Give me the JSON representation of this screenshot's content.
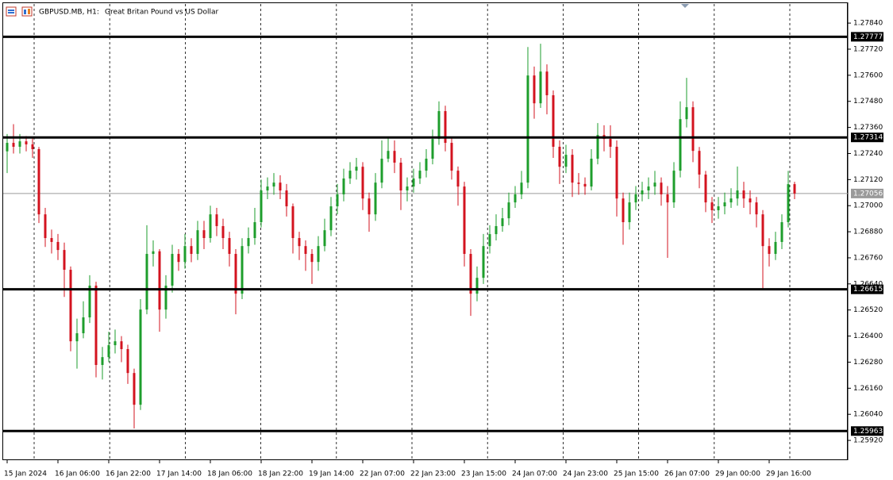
{
  "chart_data": {
    "type": "candlestick",
    "symbol": "GBPUSD.MB, H1:",
    "title": "Great Britan Pound vs US Dollar",
    "colors": {
      "up": "#1e9e2c",
      "down": "#d3131f",
      "level": "#000000",
      "current": "#9a9a9a"
    },
    "grid": true,
    "ylim": [
      1.25829,
      1.27928
    ],
    "yticks": [
      {
        "value": 1.2784,
        "label": "1.27840"
      },
      {
        "value": 1.2772,
        "label": "1.27720"
      },
      {
        "value": 1.276,
        "label": "1.27600"
      },
      {
        "value": 1.2748,
        "label": "1.27480"
      },
      {
        "value": 1.2736,
        "label": "1.27360"
      },
      {
        "value": 1.2724,
        "label": "1.27240"
      },
      {
        "value": 1.2712,
        "label": "1.27120"
      },
      {
        "value": 1.27,
        "label": "1.27000"
      },
      {
        "value": 1.2688,
        "label": "1.26880"
      },
      {
        "value": 1.2676,
        "label": "1.26760"
      },
      {
        "value": 1.2664,
        "label": "1.26640"
      },
      {
        "value": 1.2652,
        "label": "1.26520"
      },
      {
        "value": 1.264,
        "label": "1.26400"
      },
      {
        "value": 1.2628,
        "label": "1.26280"
      },
      {
        "value": 1.2616,
        "label": "1.26160"
      },
      {
        "value": 1.2604,
        "label": "1.26040"
      },
      {
        "value": 1.2592,
        "label": "1.25920"
      }
    ],
    "levels": [
      {
        "value": 1.27777,
        "label": "1.27777"
      },
      {
        "value": 1.27314,
        "label": "1.27314"
      },
      {
        "value": 1.26615,
        "label": "1.26615"
      },
      {
        "value": 1.25963,
        "label": "1.25963"
      }
    ],
    "current_price": {
      "value": 1.27056,
      "label": "1.27056"
    },
    "categories": [
      "15 Jan 2024",
      null,
      null,
      null,
      null,
      null,
      null,
      null,
      "16 Jan 06:00",
      null,
      null,
      null,
      null,
      null,
      null,
      null,
      "16 Jan 22:00",
      null,
      null,
      null,
      null,
      null,
      null,
      null,
      "17 Jan 14:00",
      null,
      null,
      null,
      null,
      null,
      null,
      null,
      "18 Jan 06:00",
      null,
      null,
      null,
      null,
      null,
      null,
      null,
      "18 Jan 22:00",
      null,
      null,
      null,
      null,
      null,
      null,
      null,
      "19 Jan 14:00",
      null,
      null,
      null,
      null,
      null,
      null,
      null,
      "22 Jan 07:00",
      null,
      null,
      null,
      null,
      null,
      null,
      null,
      "22 Jan 23:00",
      null,
      null,
      null,
      null,
      null,
      null,
      null,
      "23 Jan 15:00",
      null,
      null,
      null,
      null,
      null,
      null,
      null,
      "24 Jan 07:00",
      null,
      null,
      null,
      null,
      null,
      null,
      null,
      "24 Jan 23:00",
      null,
      null,
      null,
      null,
      null,
      null,
      null,
      "25 Jan 15:00",
      null,
      null,
      null,
      null,
      null,
      null,
      null,
      "26 Jan 07:00",
      null,
      null,
      null,
      null,
      null,
      null,
      null,
      "29 Jan 00:00",
      null,
      null,
      null,
      null,
      null,
      null,
      null,
      "29 Jan 16:00",
      null,
      null,
      null,
      null
    ],
    "open": [
      1.2725,
      1.27289,
      1.27271,
      1.27296,
      1.27282,
      1.2726,
      1.2696,
      1.26851,
      1.26833,
      1.26796,
      1.26705,
      1.26376,
      1.26413,
      1.26486,
      1.26632,
      1.26267,
      1.26303,
      1.26358,
      1.26376,
      1.2634,
      1.2623,
      1.26084,
      1.26522,
      1.26778,
      1.2679,
      1.26522,
      1.26632,
      1.26778,
      1.26741,
      1.26814,
      1.26778,
      1.26887,
      1.26851,
      1.2696,
      1.26906,
      1.26851,
      1.26778,
      1.26595,
      1.26814,
      1.26851,
      1.26924,
      1.2707,
      1.27088,
      1.27106,
      1.2707,
      1.26997,
      1.26851,
      1.26814,
      1.26778,
      1.26741,
      1.26814,
      1.26887,
      1.26997,
      1.27052,
      1.27125,
      1.27161,
      1.27179,
      1.27033,
      1.2696,
      1.27106,
      1.27216,
      1.27252,
      1.27198,
      1.2707,
      1.27088,
      1.27125,
      1.27161,
      1.27216,
      1.27307,
      1.27435,
      1.27289,
      1.27161,
      1.27088,
      1.26778,
      1.26595,
      1.26668,
      1.26814,
      1.26869,
      1.26906,
      1.26942,
      1.27015,
      1.27052,
      1.27106,
      1.27599,
      1.27471,
      1.27617,
      1.27508,
      1.27271,
      1.27179,
      1.27234,
      1.27106,
      1.271,
      1.27088,
      1.27216,
      1.27325,
      1.27307,
      1.27271,
      1.27033,
      1.26924,
      1.27015,
      1.27052,
      1.2707,
      1.27088,
      1.27106,
      1.27052,
      1.27015,
      1.27161,
      1.27398,
      1.27453,
      1.27252,
      1.27143,
      1.27015,
      1.26979,
      1.26997,
      1.27015,
      1.27033,
      1.2707,
      1.27033,
      1.27015,
      1.2696,
      1.26814,
      1.26778,
      1.26833,
      1.26924,
      1.27099
    ],
    "high": [
      1.2733,
      1.27375,
      1.2733,
      1.2732,
      1.2731,
      1.2727,
      1.2699,
      1.2689,
      1.2687,
      1.2683,
      1.2672,
      1.2648,
      1.2656,
      1.2668,
      1.2665,
      1.2635,
      1.2642,
      1.2643,
      1.264,
      1.2636,
      1.2625,
      1.2657,
      1.2691,
      1.2684,
      1.268,
      1.2668,
      1.2682,
      1.268,
      1.2687,
      1.2685,
      1.2693,
      1.2693,
      1.27,
      1.2699,
      1.2694,
      1.2688,
      1.268,
      1.2685,
      1.269,
      1.2699,
      1.2712,
      1.2713,
      1.2715,
      1.2714,
      1.271,
      1.2701,
      1.2688,
      1.2684,
      1.268,
      1.2686,
      1.2694,
      1.2704,
      1.271,
      1.2717,
      1.272,
      1.2722,
      1.272,
      1.2706,
      1.2715,
      1.273,
      1.2731,
      1.273,
      1.2722,
      1.2713,
      1.2717,
      1.272,
      1.2726,
      1.2735,
      1.2748,
      1.2746,
      1.2731,
      1.2718,
      1.2711,
      1.268,
      1.2672,
      1.2687,
      1.2691,
      1.2696,
      1.2699,
      1.2706,
      1.2709,
      1.2716,
      1.2773,
      1.2764,
      1.27745,
      1.2765,
      1.2753,
      1.273,
      1.2728,
      1.2726,
      1.2715,
      1.2713,
      1.2726,
      1.2738,
      1.2737,
      1.2737,
      1.273,
      1.2706,
      1.2706,
      1.2709,
      1.2711,
      1.2713,
      1.2716,
      1.2713,
      1.2709,
      1.272,
      1.2748,
      1.27588,
      1.2748,
      1.2727,
      1.2716,
      1.2704,
      1.2704,
      1.2706,
      1.2708,
      1.2718,
      1.2711,
      1.2707,
      1.2704,
      1.2698,
      1.2685,
      1.2688,
      1.2696,
      1.2716,
      1.2711
    ],
    "low": [
      1.2715,
      1.2724,
      1.2724,
      1.2725,
      1.2722,
      1.2692,
      1.2681,
      1.2678,
      1.2675,
      1.2658,
      1.2633,
      1.2625,
      1.2639,
      1.2646,
      1.2621,
      1.262,
      1.2628,
      1.2632,
      1.2628,
      1.2618,
      1.25975,
      1.2606,
      1.265,
      1.2672,
      1.2642,
      1.2648,
      1.266,
      1.267,
      1.2671,
      1.2674,
      1.2675,
      1.268,
      1.2683,
      1.2686,
      1.268,
      1.2672,
      1.265,
      1.2657,
      1.2678,
      1.2682,
      1.269,
      1.2703,
      1.2705,
      1.2703,
      1.2695,
      1.2678,
      1.2675,
      1.267,
      1.2664,
      1.267,
      1.2679,
      1.2686,
      1.2696,
      1.2702,
      1.271,
      1.2712,
      1.2698,
      1.2688,
      1.2693,
      1.2708,
      1.272,
      1.2715,
      1.2698,
      1.2702,
      1.2706,
      1.271,
      1.2713,
      1.2719,
      1.2728,
      1.2725,
      1.2712,
      1.27,
      1.2672,
      1.26493,
      1.2656,
      1.2664,
      1.2678,
      1.2684,
      1.2688,
      1.2691,
      1.2699,
      1.2703,
      1.2708,
      1.274,
      1.2745,
      1.2742,
      1.2722,
      1.271,
      1.2715,
      1.2704,
      1.2705,
      1.2705,
      1.2707,
      1.2719,
      1.2725,
      1.2722,
      1.2695,
      1.2682,
      1.2689,
      1.2698,
      1.2702,
      1.2703,
      1.2705,
      1.27,
      1.2676,
      1.2699,
      1.2713,
      1.2736,
      1.272,
      1.2708,
      1.2697,
      1.2692,
      1.2694,
      1.2696,
      1.2699,
      1.27,
      1.2699,
      1.2696,
      1.269,
      1.2662,
      1.2672,
      1.2675,
      1.268,
      1.269,
      1.2703
    ],
    "close": [
      1.27289,
      1.27271,
      1.27296,
      1.27282,
      1.2726,
      1.2696,
      1.26851,
      1.26833,
      1.26796,
      1.26705,
      1.26376,
      1.26413,
      1.26486,
      1.26632,
      1.26267,
      1.26303,
      1.26358,
      1.26376,
      1.2634,
      1.2623,
      1.26084,
      1.26522,
      1.26778,
      1.2679,
      1.26522,
      1.26632,
      1.26778,
      1.26741,
      1.26814,
      1.26778,
      1.26887,
      1.26851,
      1.2696,
      1.26906,
      1.26851,
      1.26778,
      1.26595,
      1.26814,
      1.26851,
      1.26924,
      1.2707,
      1.27088,
      1.27106,
      1.2707,
      1.26997,
      1.26851,
      1.26814,
      1.26778,
      1.26741,
      1.26814,
      1.26887,
      1.26997,
      1.27052,
      1.27125,
      1.27161,
      1.27179,
      1.27033,
      1.2696,
      1.27106,
      1.27216,
      1.27252,
      1.27198,
      1.2707,
      1.27088,
      1.27125,
      1.27161,
      1.27216,
      1.27307,
      1.27435,
      1.27289,
      1.27161,
      1.27088,
      1.26778,
      1.26595,
      1.26668,
      1.26814,
      1.26869,
      1.26906,
      1.26942,
      1.27015,
      1.27052,
      1.27106,
      1.27599,
      1.27471,
      1.27617,
      1.27508,
      1.27271,
      1.27179,
      1.27234,
      1.27106,
      1.271,
      1.27088,
      1.27216,
      1.27325,
      1.27307,
      1.27271,
      1.27033,
      1.26924,
      1.27015,
      1.27052,
      1.2707,
      1.27088,
      1.27106,
      1.27052,
      1.27015,
      1.27161,
      1.27398,
      1.27453,
      1.27252,
      1.27143,
      1.27015,
      1.26979,
      1.26997,
      1.27015,
      1.27033,
      1.2707,
      1.27033,
      1.27015,
      1.2696,
      1.26814,
      1.26778,
      1.26833,
      1.26924,
      1.27099,
      1.27056
    ]
  }
}
